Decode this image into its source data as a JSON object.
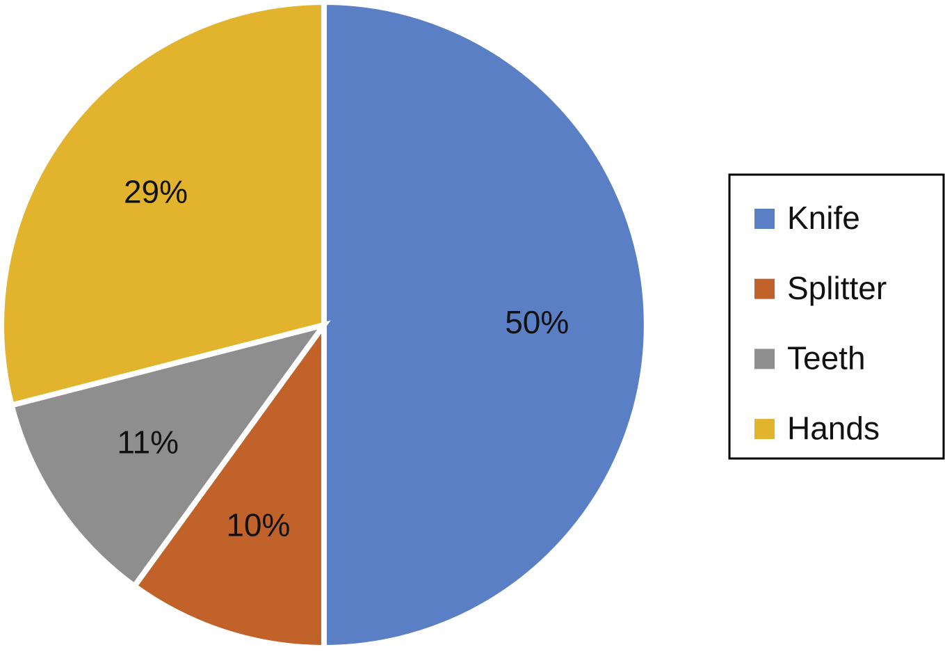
{
  "chart_data": {
    "type": "pie",
    "categories": [
      "Knife",
      "Splitter",
      "Teeth",
      "Hands"
    ],
    "values": [
      50,
      10,
      11,
      29
    ],
    "value_labels": [
      "50%",
      "10%",
      "11%",
      "29%"
    ],
    "colors": [
      "#5b7fc4",
      "#c0622a",
      "#8e8e8e",
      "#e2b32d"
    ],
    "legend": "right"
  }
}
